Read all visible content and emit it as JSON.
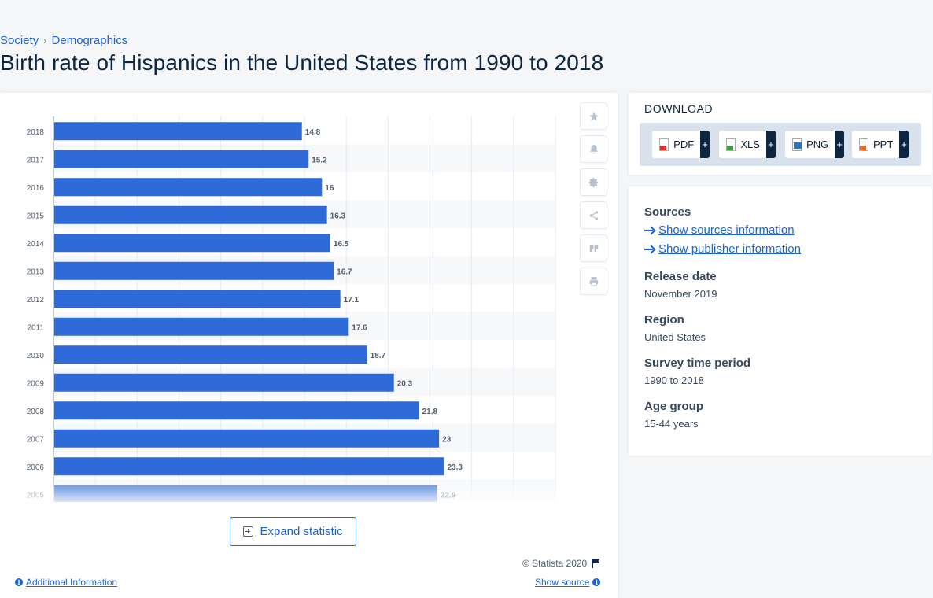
{
  "breadcrumb": {
    "items": [
      "Society",
      "Demographics"
    ],
    "separator": "›"
  },
  "page_title": "Birth rate of Hispanics in the United States from 1990 to 2018",
  "chart_data": {
    "type": "bar",
    "orientation": "horizontal",
    "categories": [
      "2018",
      "2017",
      "2016",
      "2015",
      "2014",
      "2013",
      "2012",
      "2011",
      "2010",
      "2009",
      "2008",
      "2007",
      "2006",
      "2005"
    ],
    "values": [
      14.8,
      15.2,
      16,
      16.3,
      16.5,
      16.7,
      17.1,
      17.6,
      18.7,
      20.3,
      21.8,
      23,
      23.3,
      22.9
    ],
    "value_labels": [
      "14.8",
      "15.2",
      "16",
      "16.3",
      "16.5",
      "16.7",
      "17.1",
      "17.6",
      "18.7",
      "20.3",
      "21.8",
      "23",
      "23.3",
      "22.9"
    ],
    "xlim": [
      0,
      30
    ],
    "grid": true,
    "bar_color": "#2e6ad8"
  },
  "tools": [
    {
      "name": "favorite-star-icon"
    },
    {
      "name": "notification-bell-icon"
    },
    {
      "name": "settings-gear-icon"
    },
    {
      "name": "share-icon"
    },
    {
      "name": "cite-quote-icon"
    },
    {
      "name": "print-icon"
    }
  ],
  "expand_label": "Expand statistic",
  "copyright": "© Statista 2020",
  "additional_info": "Additional Information",
  "show_source": "Show source",
  "download": {
    "title": "DOWNLOAD",
    "buttons": [
      {
        "label": "PDF",
        "plus": "+",
        "color": "#e2342b"
      },
      {
        "label": "XLS",
        "plus": "+",
        "color": "#3a9c3d"
      },
      {
        "label": "PNG",
        "plus": "+",
        "color": "#2b72c7"
      },
      {
        "label": "PPT",
        "plus": "+",
        "color": "#e96b2a"
      }
    ]
  },
  "info": {
    "sources_label": "Sources",
    "show_sources": "Show sources information",
    "show_publisher": "Show publisher information",
    "release_label": "Release date",
    "release_value": "November 2019",
    "region_label": "Region",
    "region_value": "United States",
    "survey_label": "Survey time period",
    "survey_value": "1990 to 2018",
    "age_label": "Age group",
    "age_value": "15-44 years"
  },
  "colors": {
    "accent": "#1b64d7",
    "bar": "#2e6ad8",
    "text_dark": "#0d253f"
  }
}
